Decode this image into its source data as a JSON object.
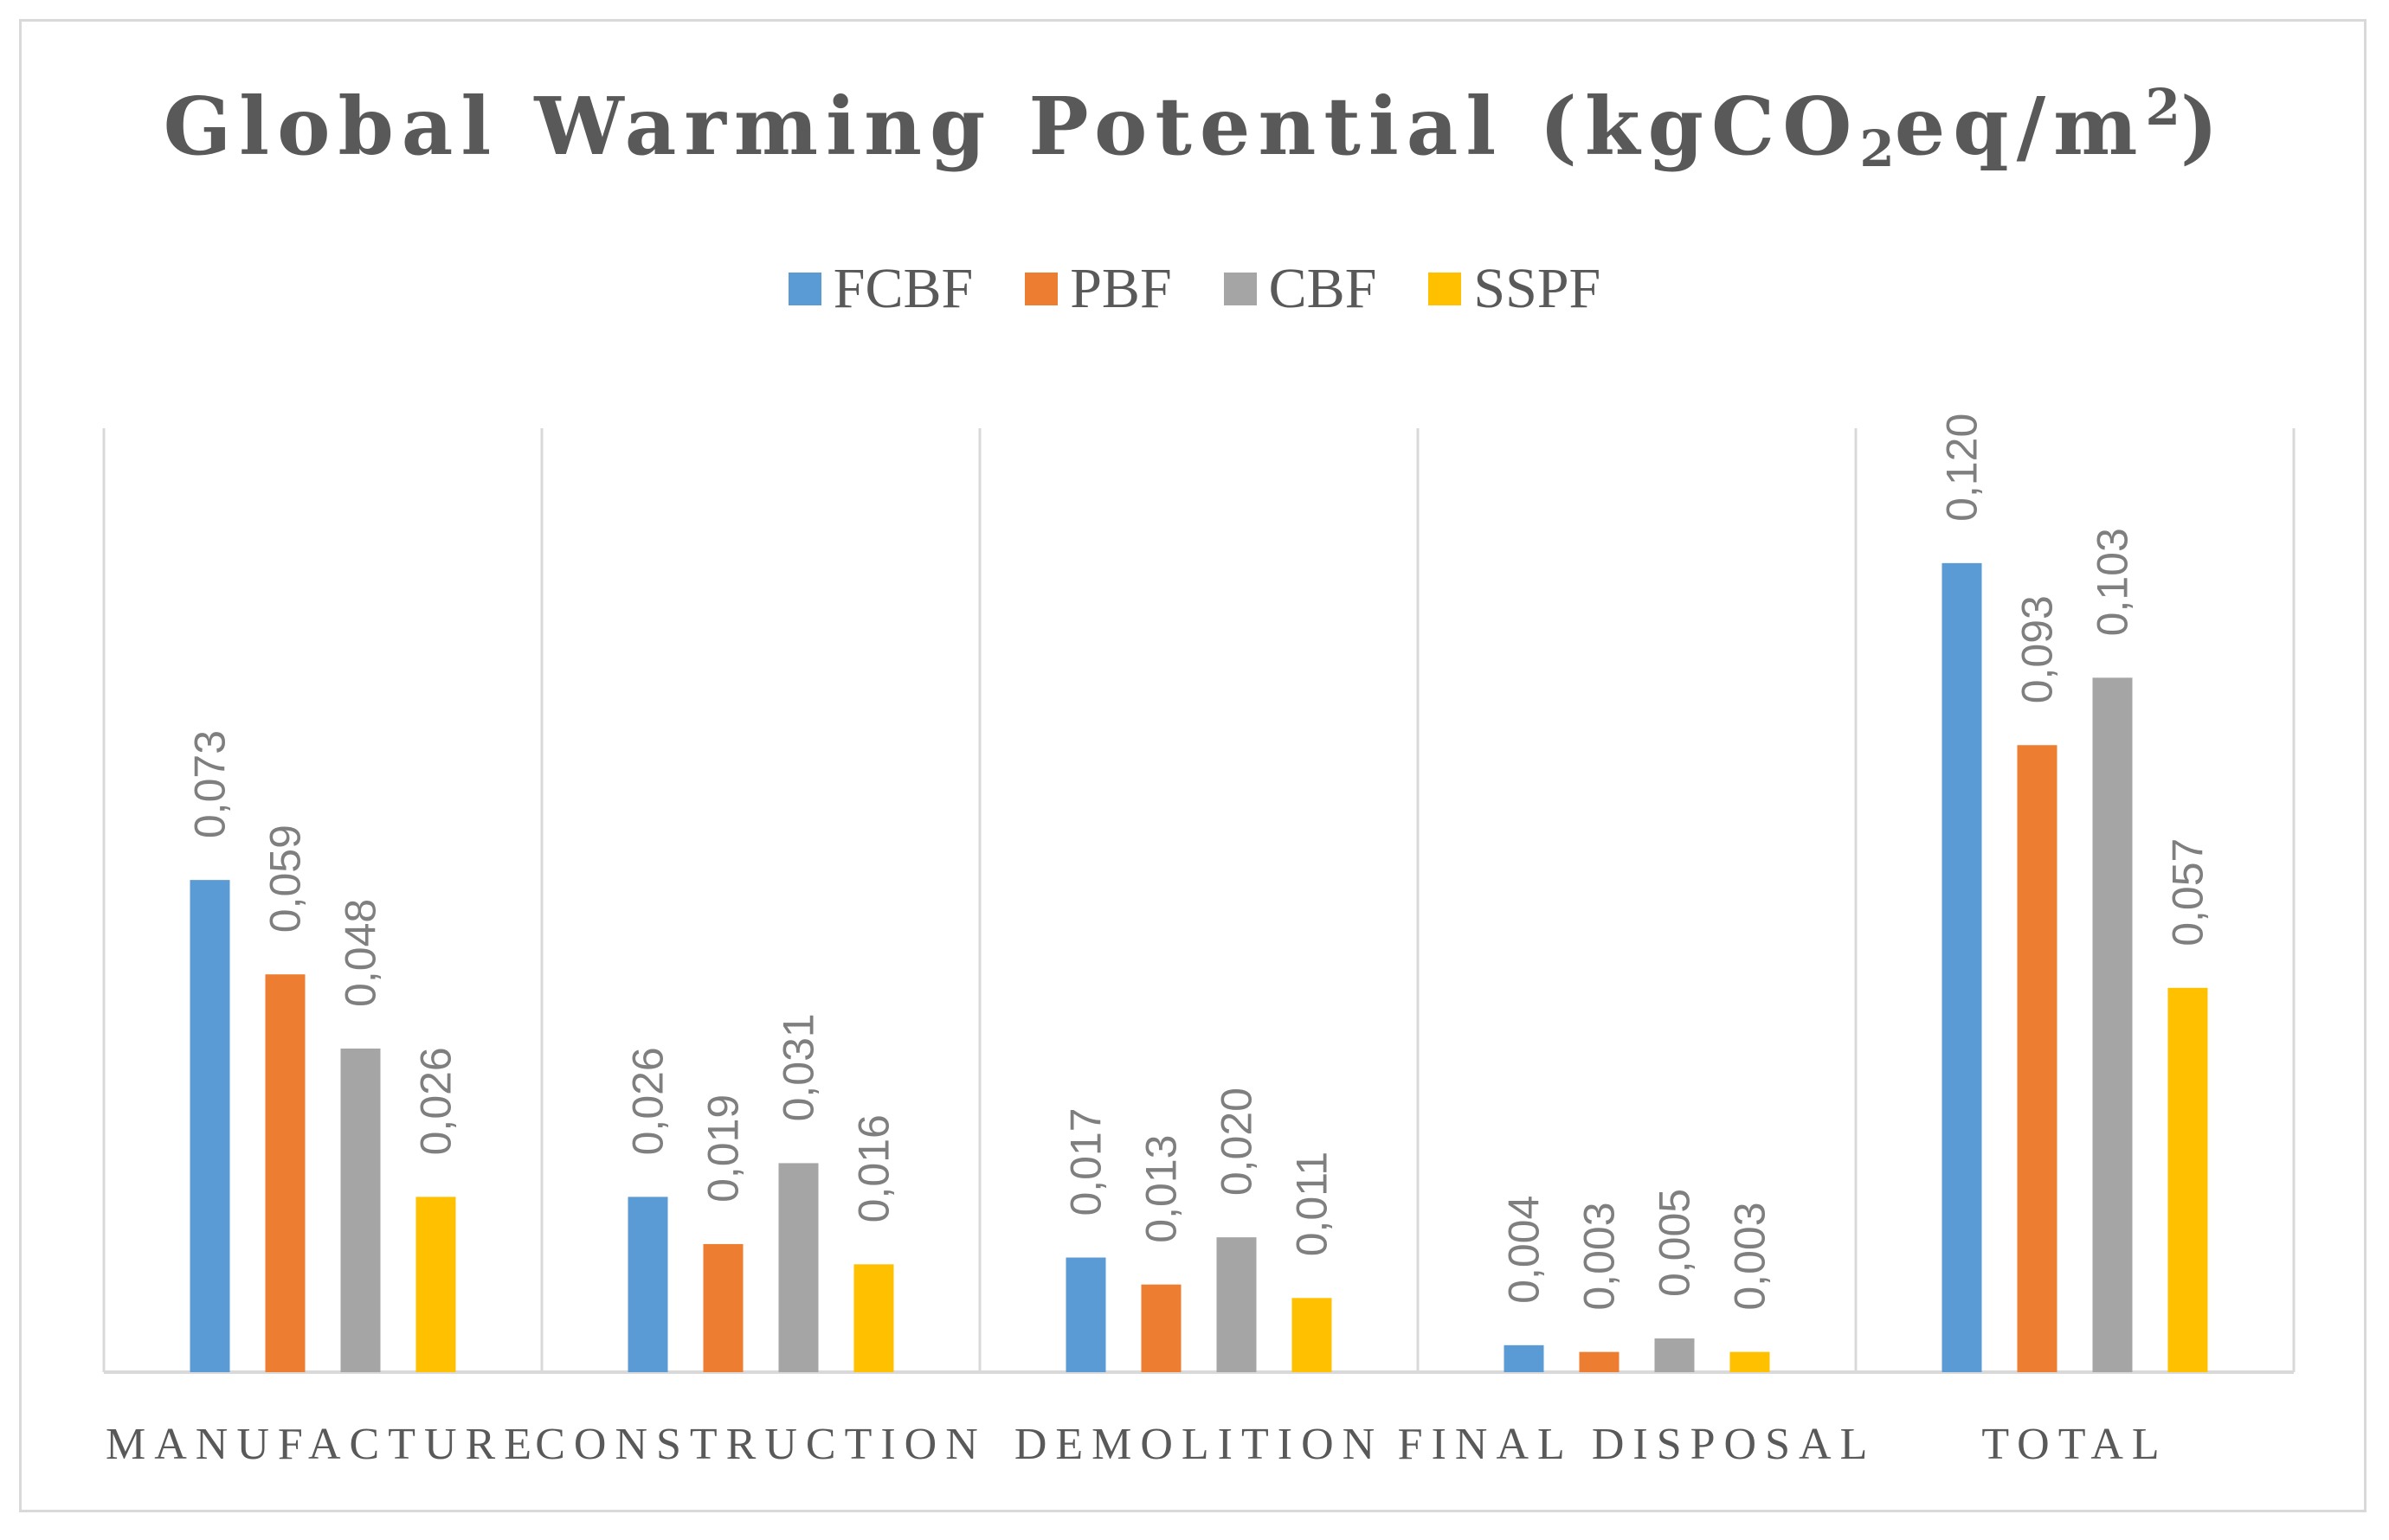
{
  "chart_data": {
    "type": "bar",
    "title": {
      "prefix": "Global Warming Potential (kgCO",
      "sub": "2",
      "middle": "eq/m",
      "sup": "2",
      "suffix": ")"
    },
    "categories": [
      "MANUFACTURE",
      "CONSTRUCTION",
      "DEMOLITION",
      "FINAL DISPOSAL",
      "TOTAL"
    ],
    "series": [
      {
        "name": "FCBF",
        "color": "#5b9bd5",
        "values": [
          0.073,
          0.026,
          0.017,
          0.004,
          0.12
        ],
        "labels": [
          "0,073",
          "0,026",
          "0,017",
          "0,004",
          "0,120"
        ]
      },
      {
        "name": "PBF",
        "color": "#ed7d31",
        "values": [
          0.059,
          0.019,
          0.013,
          0.003,
          0.093
        ],
        "labels": [
          "0,059",
          "0,019",
          "0,013",
          "0,003",
          "0,093"
        ]
      },
      {
        "name": "CBF",
        "color": "#a5a5a5",
        "values": [
          0.048,
          0.031,
          0.02,
          0.005,
          0.103
        ],
        "labels": [
          "0,048",
          "0,031",
          "0,020",
          "0,005",
          "0,103"
        ]
      },
      {
        "name": "SSPF",
        "color": "#ffc000",
        "values": [
          0.026,
          0.016,
          0.011,
          0.003,
          0.057
        ],
        "labels": [
          "0,026",
          "0,016",
          "0,011",
          "0,003",
          "0,057"
        ]
      }
    ],
    "ylim": [
      0,
      0.14
    ],
    "grid": "vertical category separators",
    "legend": "top-center",
    "xlabel": "",
    "ylabel": ""
  }
}
